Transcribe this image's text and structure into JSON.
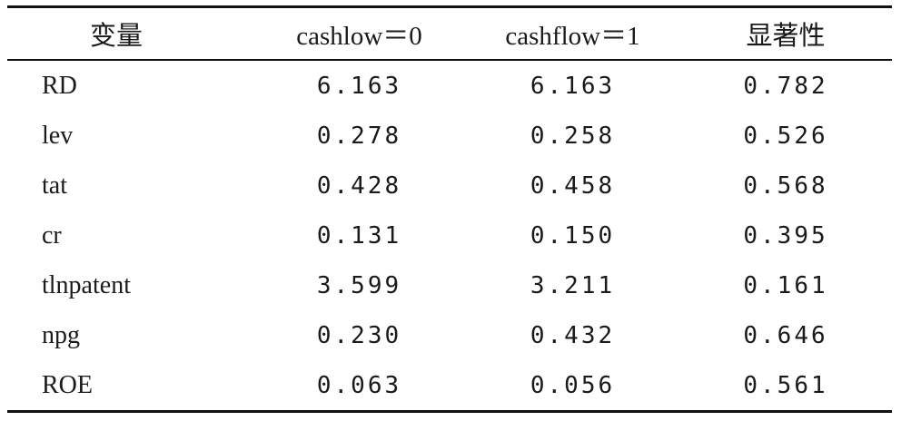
{
  "table": {
    "headers": [
      "变量",
      "cashlow＝0",
      "cashflow＝1",
      "显著性"
    ],
    "rows": [
      {
        "label": "RD",
        "values": [
          "6.163",
          "6.163",
          "0.782"
        ]
      },
      {
        "label": "lev",
        "values": [
          "0.278",
          "0.258",
          "0.526"
        ]
      },
      {
        "label": "tat",
        "values": [
          "0.428",
          "0.458",
          "0.568"
        ]
      },
      {
        "label": "cr",
        "values": [
          "0.131",
          "0.150",
          "0.395"
        ]
      },
      {
        "label": "tlnpatent",
        "values": [
          "3.599",
          "3.211",
          "0.161"
        ]
      },
      {
        "label": "npg",
        "values": [
          "0.230",
          "0.432",
          "0.646"
        ]
      },
      {
        "label": "ROE",
        "values": [
          "0.063",
          "0.056",
          "0.561"
        ]
      }
    ]
  }
}
